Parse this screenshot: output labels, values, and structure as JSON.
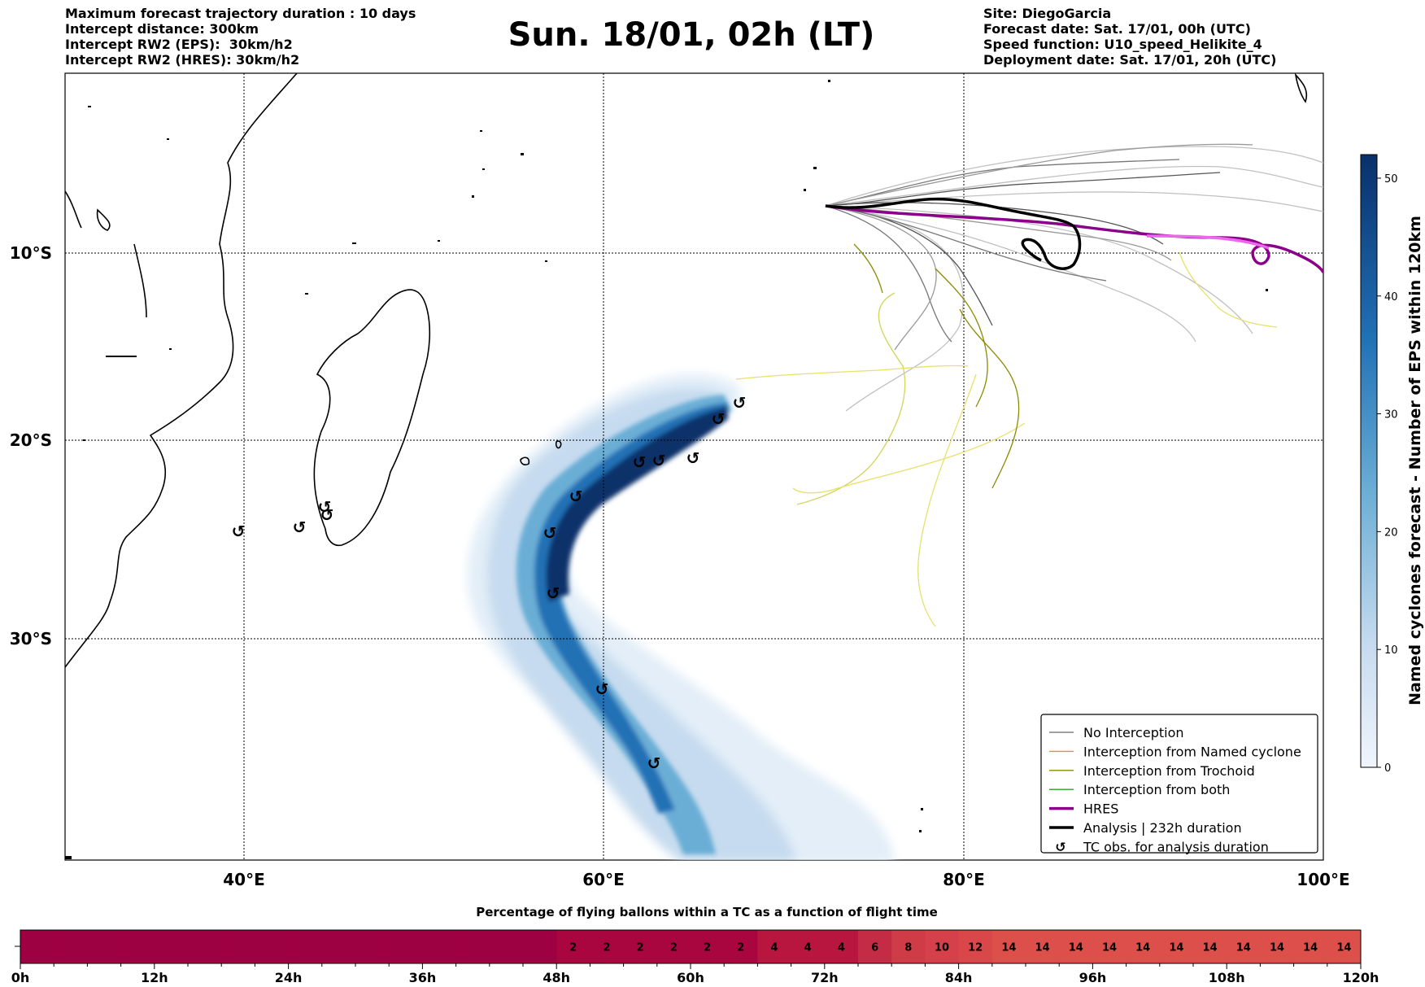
{
  "header": {
    "left_lines": [
      "Maximum forecast trajectory duration : 10 days",
      "Intercept distance: 300km",
      "Intercept RW2 (EPS):  30km/h2",
      "Intercept RW2 (HRES): 30km/h2"
    ],
    "title": "Sun. 18/01, 02h (LT)",
    "right_lines": [
      "Site: DiegoGarcia",
      "Forecast date: Sat. 17/01, 00h (UTC)",
      "Speed function: U10_speed_Helikite_4",
      "Deployment date: Sat. 17/01, 20h (UTC)"
    ]
  },
  "map": {
    "lon_labels": [
      "40°E",
      "60°E",
      "80°E",
      "100°E"
    ],
    "lat_labels": [
      "10°S",
      "20°S",
      "30°S"
    ],
    "tc_obs_icon": "tc-observation-icon"
  },
  "legend": {
    "items": [
      {
        "label": "No Interception",
        "color": "#808080"
      },
      {
        "label": "Interception from Named cyclone",
        "color": "#ff7f50"
      },
      {
        "label": "Interception from Trochoid",
        "color": "#8b8b00"
      },
      {
        "label": "Interception from both",
        "color": "#2ca02c"
      },
      {
        "label": "HRES",
        "color": "#8b008b"
      },
      {
        "label": "Analysis | 232h duration",
        "color": "#000000"
      },
      {
        "label": "TC obs. for analysis duration",
        "color": "#000000"
      }
    ]
  },
  "colorbar": {
    "label": "Named cyclones forecast - Number of EPS within 120km",
    "ticks": [
      "0",
      "10",
      "20",
      "30",
      "40",
      "50"
    ],
    "max": 52
  },
  "chart_data": {
    "type": "heatmap",
    "title": "Percentage of flying ballons within a TC as a function of flight time",
    "x_tick_labels": [
      "0h",
      "12h",
      "24h",
      "36h",
      "48h",
      "60h",
      "72h",
      "84h",
      "96h",
      "108h",
      "120h"
    ],
    "bin_hours": 3,
    "values": [
      0,
      0,
      0,
      0,
      0,
      0,
      0,
      0,
      0,
      0,
      0,
      0,
      0,
      0,
      0,
      0,
      2,
      2,
      2,
      2,
      2,
      2,
      4,
      4,
      4,
      6,
      8,
      10,
      12,
      14,
      14,
      14,
      14,
      14,
      14,
      14,
      14,
      14,
      14,
      14
    ]
  }
}
